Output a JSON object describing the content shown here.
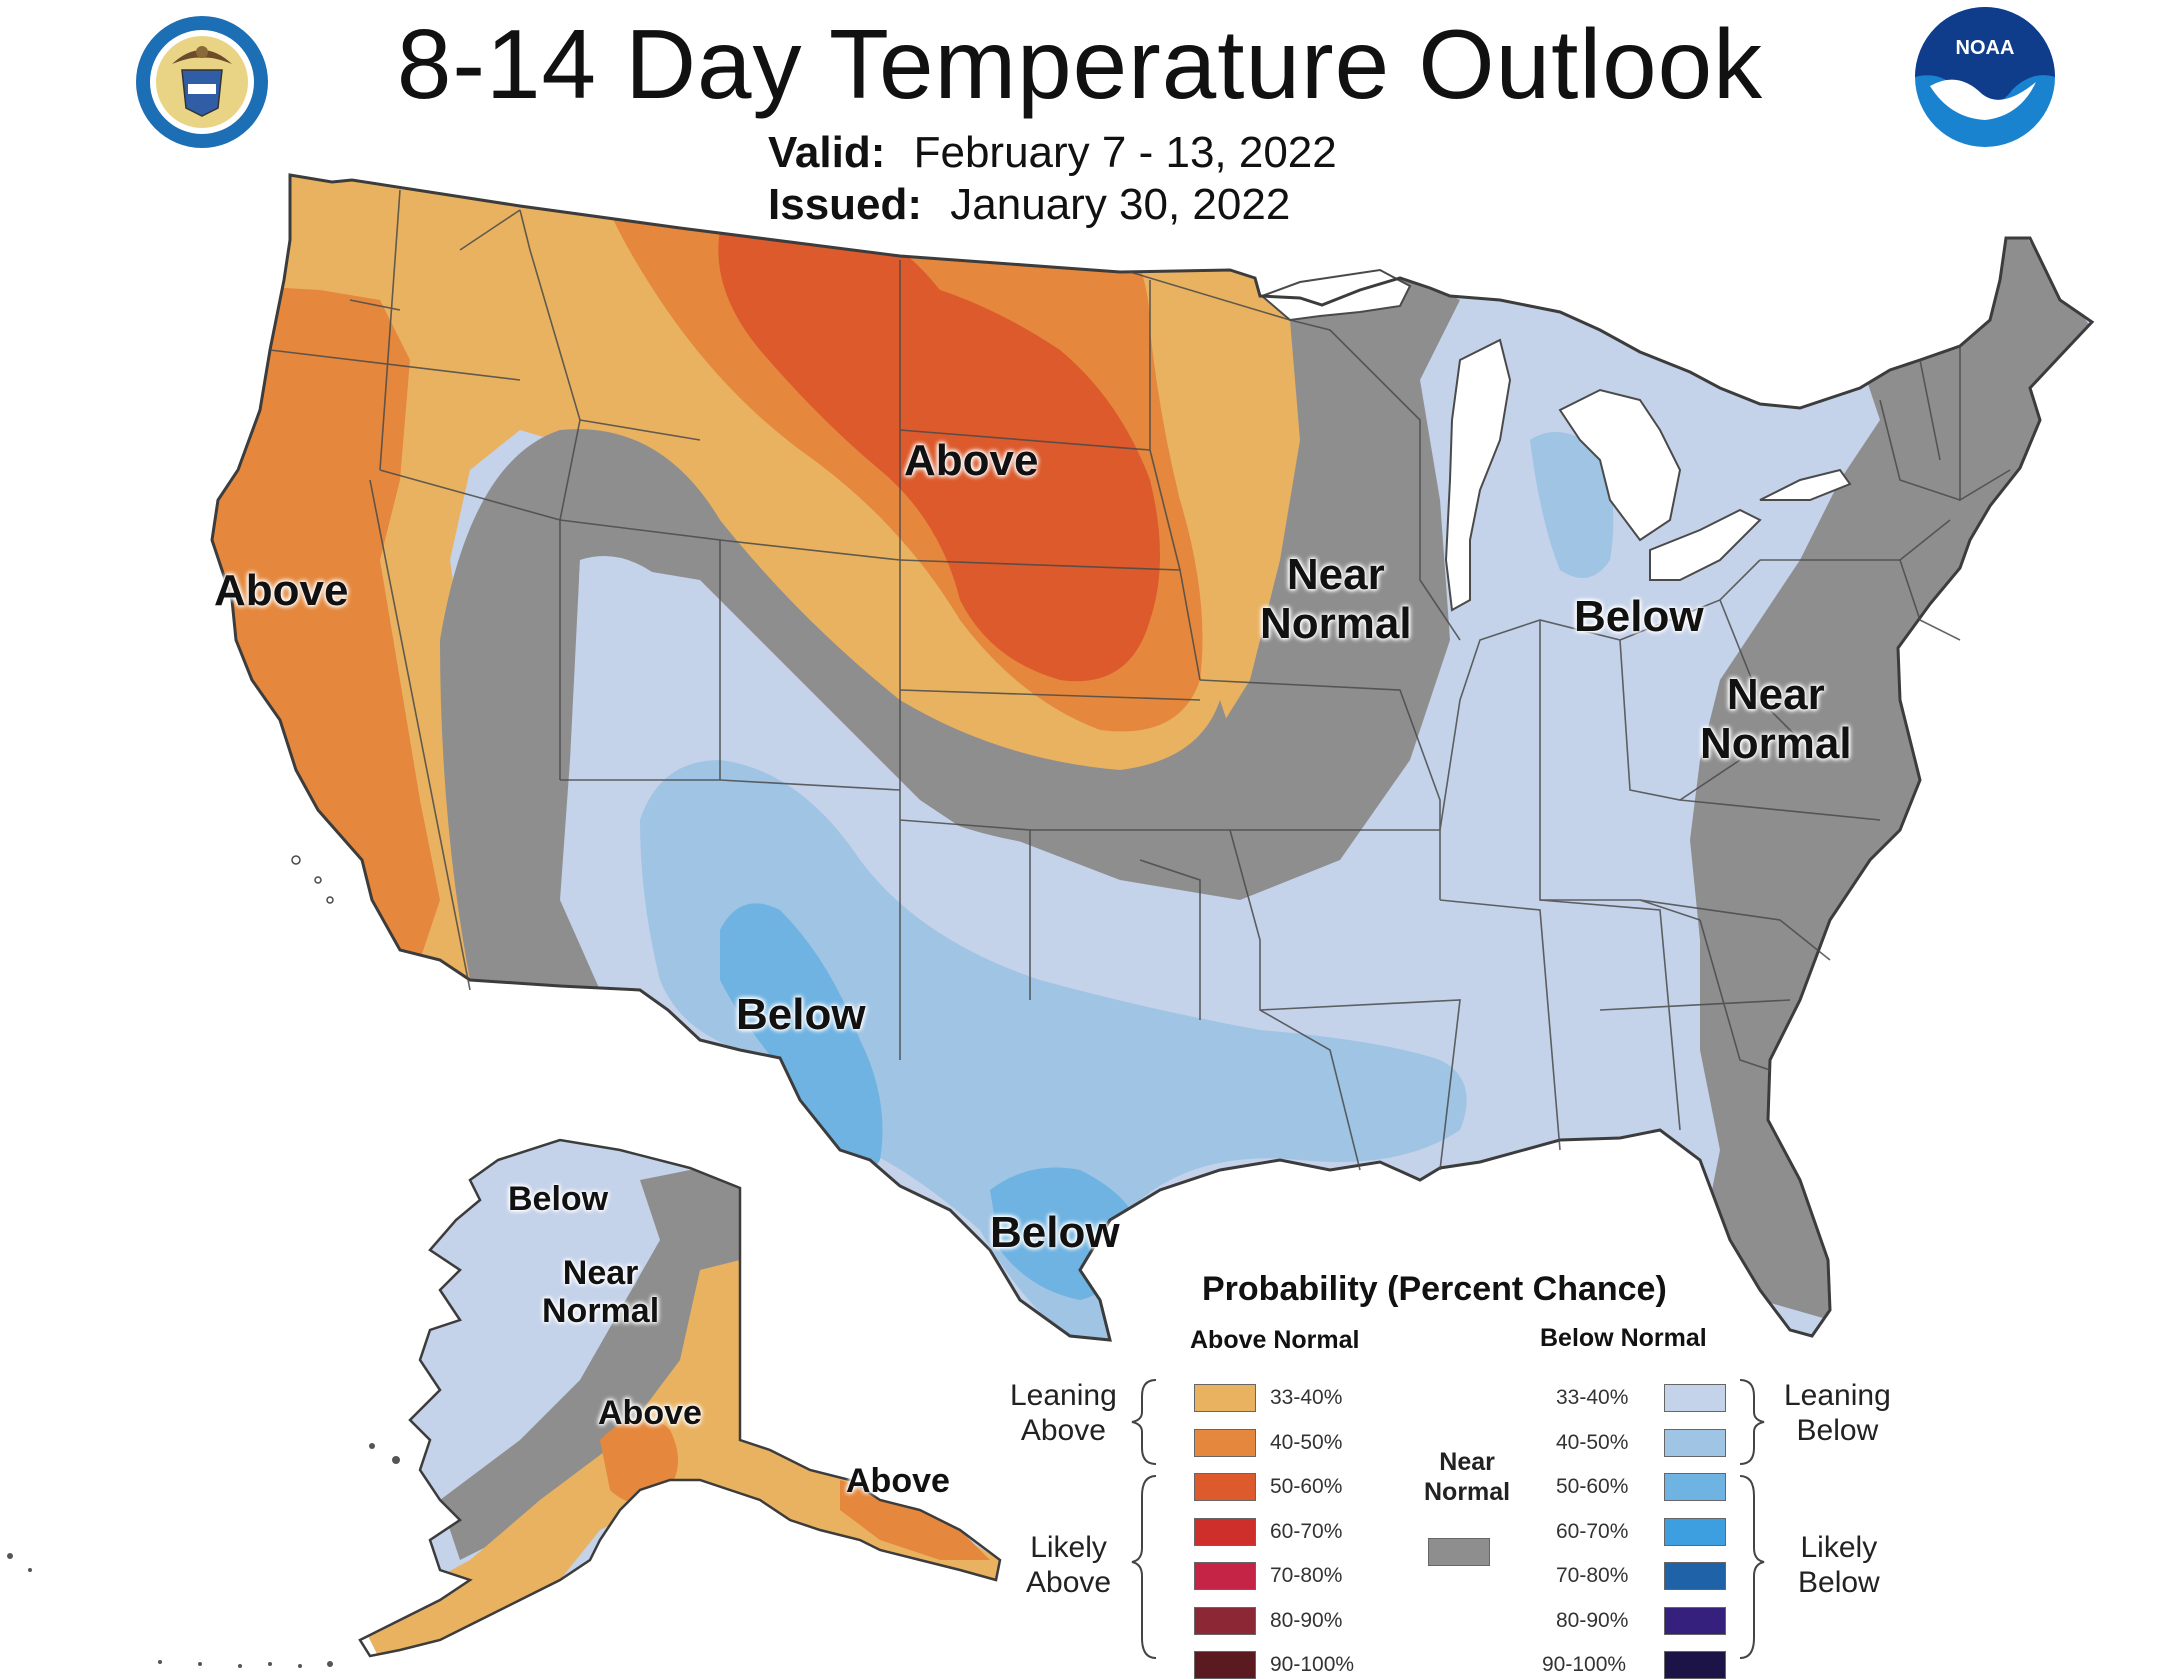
{
  "header": {
    "title": "8-14 Day Temperature Outlook",
    "valid_label": "Valid:",
    "valid_value": "February 7 - 13, 2022",
    "issued_label": "Issued:",
    "issued_value": "January 30, 2022"
  },
  "logos": {
    "left": "department-of-commerce-seal-icon",
    "right": "noaa-logo-icon",
    "right_text": "NOAA"
  },
  "map_labels": {
    "west_coast": "Above",
    "northern_plains": "Above",
    "midwest_near": [
      "Near",
      "Normal"
    ],
    "ohio_valley": "Below",
    "east_near": [
      "Near",
      "Normal"
    ],
    "southwest": "Below",
    "south_texas": "Below",
    "alaska_north": "Below",
    "alaska_near": [
      "Near",
      "Normal"
    ],
    "alaska_south": "Above",
    "alaska_panhandle": "Above"
  },
  "colors": {
    "above_33_40": "#e9b261",
    "above_40_50": "#e5883d",
    "above_50_60": "#dc5a2c",
    "above_60_70": "#cf2f2a",
    "above_70_80": "#c62446",
    "above_80_90": "#8c2735",
    "above_90_100": "#5a1a1f",
    "near_normal": "#8e8e8e",
    "below_33_40": "#c4d2ea",
    "below_40_50": "#9fc4e4",
    "below_50_60": "#6fb3e2",
    "below_60_70": "#3d9ee0",
    "below_70_80": "#1f62a8",
    "below_80_90": "#35207e",
    "below_90_100": "#1c1446",
    "lakes": "#ffffff",
    "border": "#4a4a4a"
  },
  "legend": {
    "title": "Probability (Percent Chance)",
    "above_heading": "Above Normal",
    "below_heading": "Below Normal",
    "near_heading": [
      "Near",
      "Normal"
    ],
    "leaning_above": [
      "Leaning",
      "Above"
    ],
    "likely_above": [
      "Likely",
      "Above"
    ],
    "leaning_below": [
      "Leaning",
      "Below"
    ],
    "likely_below": [
      "Likely",
      "Below"
    ],
    "above_items": [
      "33-40%",
      "40-50%",
      "50-60%",
      "60-70%",
      "70-80%",
      "80-90%",
      "90-100%"
    ],
    "below_items": [
      "33-40%",
      "40-50%",
      "50-60%",
      "60-70%",
      "70-80%",
      "80-90%",
      "90-100%"
    ]
  }
}
